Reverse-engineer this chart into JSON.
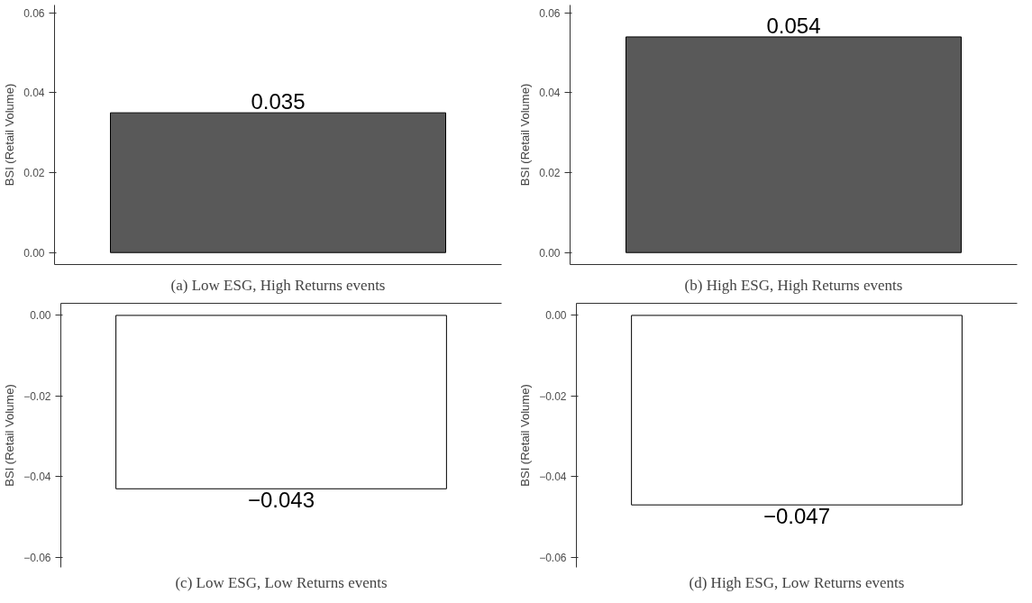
{
  "chart_data": [
    {
      "type": "bar",
      "title": "(a) Low ESG, High Returns events",
      "ylabel": "BSI (Retail Volume)",
      "categories": [
        null
      ],
      "values": [
        0.035
      ],
      "value_labels": [
        "0.035"
      ],
      "color": "#595959",
      "ylim": [
        -0.003,
        0.062
      ],
      "yticks": [
        {
          "value": 0,
          "label": "0.00"
        },
        0.02,
        0.04,
        0.06
      ],
      "grid": false,
      "tick_labels": "y"
    },
    {
      "type": "bar",
      "title": "(b) High ESG, High Returns events",
      "ylabel": "BSI (Retail Volume)",
      "categories": [
        null
      ],
      "values": [
        0.054
      ],
      "value_labels": [
        "0.054"
      ],
      "color": "#595959",
      "ylim": [
        -0.003,
        0.062
      ],
      "yticks": [
        {
          "value": 0,
          "label": "0.00"
        },
        0.02,
        0.04,
        0.06
      ],
      "grid": false,
      "tick_labels": "y"
    },
    {
      "type": "bar",
      "title": "(c) Low ESG, Low Returns events",
      "ylabel": "BSI (Retail Volume)",
      "categories": [
        null
      ],
      "values": [
        -0.043
      ],
      "value_labels": [
        "−0.043"
      ],
      "color": "#ffffff",
      "ylim": [
        -0.0625,
        0.003
      ],
      "yticks": [
        {
          "value": 0,
          "label": "0.00"
        },
        {
          "value": -0.02,
          "label": "−0.02"
        },
        {
          "value": -0.04,
          "label": "−0.04"
        },
        {
          "value": -0.06,
          "label": "−0.06"
        }
      ],
      "grid": false,
      "tick_labels": "y"
    },
    {
      "type": "bar",
      "title": "(d) High ESG, Low Returns events",
      "ylabel": "BSI (Retail Volume)",
      "categories": [
        null
      ],
      "values": [
        -0.047
      ],
      "value_labels": [
        "−0.047"
      ],
      "color": "#ffffff",
      "ylim": [
        -0.0625,
        0.003
      ],
      "yticks": [
        {
          "value": 0,
          "label": "0.00"
        },
        {
          "value": -0.02,
          "label": "−0.02"
        },
        {
          "value": -0.04,
          "label": "−0.04"
        },
        {
          "value": -0.06,
          "label": "−0.06"
        }
      ],
      "grid": false,
      "tick_labels": "y"
    }
  ]
}
